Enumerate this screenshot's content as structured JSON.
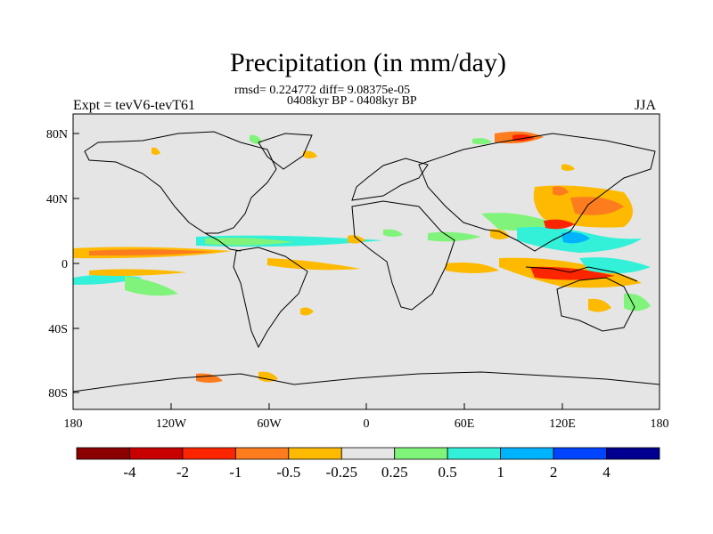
{
  "title": "Precipitation (in mm/day)",
  "stats": "rmsd= 0.224772 diff= 9.08375e-05",
  "period": "0408kyr BP - 0408kyr BP",
  "expt": "Expt = tevV6-tevT61",
  "season": "JJA",
  "lat_labels": [
    "80N",
    "40N",
    "0",
    "40S",
    "80S"
  ],
  "lon_labels": [
    "180",
    "120W",
    "60W",
    "0",
    "60E",
    "120E",
    "180"
  ],
  "colorbar": {
    "colors": [
      "#8b0000",
      "#c80000",
      "#fb2600",
      "#fd7c1e",
      "#fdba00",
      "#e5e5e5",
      "#80f47a",
      "#33f0d9",
      "#00b3ff",
      "#0044ff",
      "#000090"
    ],
    "labels": [
      "-4",
      "-2",
      "-1",
      "-0.5",
      "-0.25",
      "0.25",
      "0.5",
      "1",
      "2",
      "4"
    ]
  }
}
